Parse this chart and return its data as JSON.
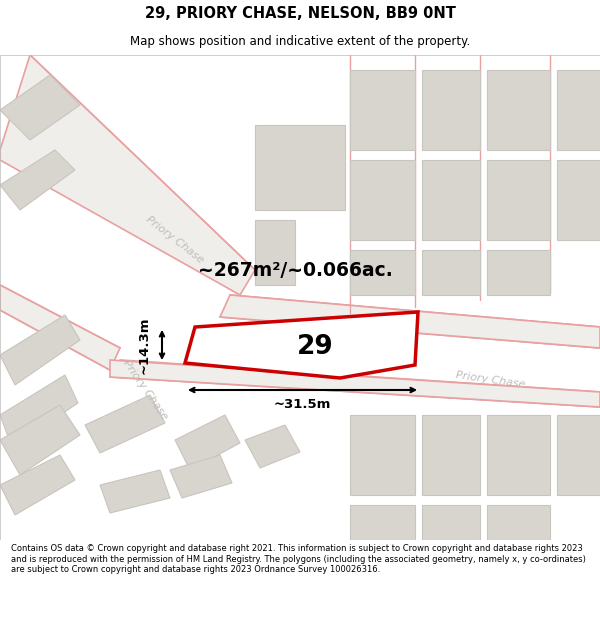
{
  "title": "29, PRIORY CHASE, NELSON, BB9 0NT",
  "subtitle": "Map shows position and indicative extent of the property.",
  "footer": "Contains OS data © Crown copyright and database right 2021. This information is subject to Crown copyright and database rights 2023 and is reproduced with the permission of HM Land Registry. The polygons (including the associated geometry, namely x, y co-ordinates) are subject to Crown copyright and database rights 2023 Ordnance Survey 100026316.",
  "map_bg_color": "#f0eeeb",
  "building_color": "#d8d5cf",
  "building_edge_color": "#c8c5bf",
  "road_line_color": "#e8a0a0",
  "road_fill_color": "#f0eeeb",
  "highlight_color": "#cc0000",
  "area_text": "~267m²/~0.066ac.",
  "label_29": "29",
  "dim_width": "~31.5m",
  "dim_height": "~14.3m",
  "road_label_diag": "Priory Chase",
  "road_label_right": "Priory Chase"
}
